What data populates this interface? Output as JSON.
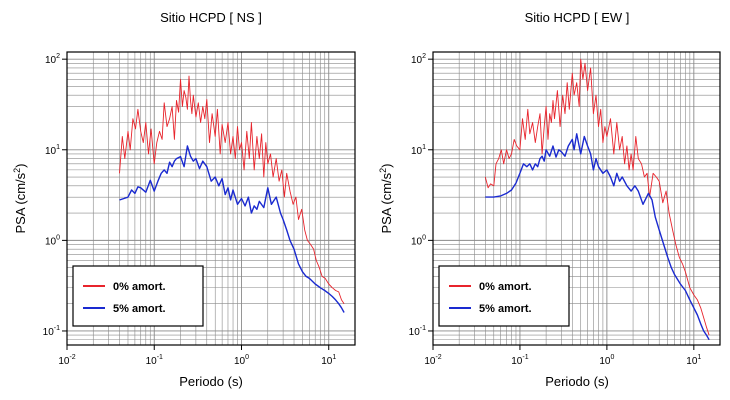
{
  "chart_data": [
    {
      "type": "line",
      "title": "Sitio HCPD [ NS ]",
      "xlabel": "Periodo (s)",
      "ylabel": "PSA (cm/s",
      "ylabel_sup": "2",
      "ylabel_tail": ")",
      "x_scale": "log",
      "y_scale": "log",
      "xlim": [
        0.01,
        20
      ],
      "ylim": [
        0.07,
        120
      ],
      "grid": true,
      "legend_position": "bottom-left",
      "x_ticks": [
        {
          "base": "10",
          "exp": "-2",
          "value": 0.01
        },
        {
          "base": "10",
          "exp": "-1",
          "value": 0.1
        },
        {
          "base": "10",
          "exp": "0",
          "value": 1
        },
        {
          "base": "10",
          "exp": "1",
          "value": 10
        }
      ],
      "y_ticks": [
        {
          "base": "10",
          "exp": "-1",
          "value": 0.1
        },
        {
          "base": "10",
          "exp": "0",
          "value": 1
        },
        {
          "base": "10",
          "exp": "1",
          "value": 10
        },
        {
          "base": "10",
          "exp": "2",
          "value": 100
        }
      ],
      "series": [
        {
          "name": "0% amort.",
          "color": "#e8242c",
          "x": [
            0.04,
            0.043,
            0.046,
            0.05,
            0.053,
            0.057,
            0.061,
            0.065,
            0.07,
            0.075,
            0.08,
            0.086,
            0.092,
            0.1,
            0.107,
            0.115,
            0.123,
            0.13,
            0.14,
            0.15,
            0.16,
            0.17,
            0.18,
            0.19,
            0.2,
            0.21,
            0.22,
            0.23,
            0.24,
            0.25,
            0.26,
            0.27,
            0.28,
            0.3,
            0.32,
            0.34,
            0.36,
            0.38,
            0.4,
            0.43,
            0.46,
            0.5,
            0.53,
            0.57,
            0.6,
            0.65,
            0.7,
            0.75,
            0.8,
            0.85,
            0.9,
            0.95,
            1.0,
            1.07,
            1.15,
            1.23,
            1.3,
            1.4,
            1.5,
            1.6,
            1.7,
            1.8,
            1.9,
            2.0,
            2.15,
            2.3,
            2.5,
            2.7,
            2.9,
            3.1,
            3.3,
            3.6,
            3.9,
            4.2,
            4.5,
            4.9,
            5.3,
            5.7,
            6.2,
            6.7,
            7.2,
            7.8,
            8.4,
            9.1,
            10,
            11,
            12,
            13,
            14,
            15
          ],
          "y": [
            5.5,
            14,
            8,
            16,
            10,
            22,
            17,
            28,
            16,
            12,
            20,
            9,
            17,
            7,
            12,
            16,
            13,
            33,
            18,
            22,
            30,
            13,
            35,
            26,
            60,
            30,
            45,
            38,
            28,
            65,
            35,
            25,
            40,
            23,
            33,
            20,
            30,
            22,
            36,
            12,
            25,
            14,
            28,
            9,
            19,
            12,
            20,
            9,
            14,
            8,
            18,
            10,
            12,
            6,
            16,
            8,
            20,
            6,
            14,
            8,
            15,
            5,
            12,
            7,
            9,
            5,
            8,
            4.5,
            6,
            3,
            5.5,
            3.5,
            2.5,
            3,
            1.7,
            2.2,
            1.3,
            1.0,
            0.9,
            0.8,
            0.6,
            0.5,
            0.4,
            0.38,
            0.33,
            0.3,
            0.28,
            0.27,
            0.22,
            0.2
          ]
        },
        {
          "name": "5% amort.",
          "color": "#1a2ad0",
          "x": [
            0.04,
            0.045,
            0.05,
            0.055,
            0.06,
            0.065,
            0.07,
            0.08,
            0.09,
            0.1,
            0.11,
            0.12,
            0.13,
            0.14,
            0.15,
            0.16,
            0.17,
            0.18,
            0.2,
            0.22,
            0.24,
            0.26,
            0.28,
            0.3,
            0.33,
            0.36,
            0.4,
            0.45,
            0.5,
            0.55,
            0.6,
            0.65,
            0.7,
            0.75,
            0.8,
            0.9,
            1.0,
            1.1,
            1.2,
            1.3,
            1.4,
            1.5,
            1.6,
            1.8,
            2.0,
            2.2,
            2.5,
            2.8,
            3.0,
            3.3,
            3.6,
            4.0,
            4.5,
            5.0,
            5.5,
            6,
            7,
            8,
            9,
            10,
            11,
            12,
            13,
            14,
            15
          ],
          "y": [
            2.8,
            2.9,
            3.0,
            3.6,
            3.3,
            3.9,
            3.8,
            3.4,
            4.6,
            3.5,
            4.5,
            5.5,
            6.0,
            5.5,
            7.3,
            6.5,
            7.5,
            8.0,
            8.4,
            6.5,
            11,
            8.5,
            7.5,
            8,
            6.2,
            7.5,
            6.5,
            4.5,
            5,
            4.0,
            4.8,
            3.2,
            3.8,
            2.8,
            3.6,
            2.5,
            2.9,
            2.4,
            3.0,
            2.0,
            2.4,
            2.2,
            2.7,
            2.3,
            3.8,
            2.5,
            3.0,
            2.0,
            1.7,
            1.3,
            1.0,
            0.8,
            0.55,
            0.45,
            0.4,
            0.38,
            0.33,
            0.3,
            0.28,
            0.26,
            0.24,
            0.22,
            0.2,
            0.18,
            0.16
          ]
        }
      ]
    },
    {
      "type": "line",
      "title": "Sitio HCPD [ EW ]",
      "xlabel": "Periodo (s)",
      "ylabel": "PSA (cm/s",
      "ylabel_sup": "2",
      "ylabel_tail": ")",
      "x_scale": "log",
      "y_scale": "log",
      "xlim": [
        0.01,
        20
      ],
      "ylim": [
        0.07,
        120
      ],
      "grid": true,
      "legend_position": "bottom-left",
      "x_ticks": [
        {
          "base": "10",
          "exp": "-2",
          "value": 0.01
        },
        {
          "base": "10",
          "exp": "-1",
          "value": 0.1
        },
        {
          "base": "10",
          "exp": "0",
          "value": 1
        },
        {
          "base": "10",
          "exp": "1",
          "value": 10
        }
      ],
      "y_ticks": [
        {
          "base": "10",
          "exp": "-1",
          "value": 0.1
        },
        {
          "base": "10",
          "exp": "0",
          "value": 1
        },
        {
          "base": "10",
          "exp": "1",
          "value": 10
        },
        {
          "base": "10",
          "exp": "2",
          "value": 100
        }
      ],
      "series": [
        {
          "name": "0% amort.",
          "color": "#e8242c",
          "x": [
            0.04,
            0.043,
            0.046,
            0.05,
            0.053,
            0.057,
            0.061,
            0.065,
            0.07,
            0.075,
            0.08,
            0.086,
            0.092,
            0.1,
            0.107,
            0.115,
            0.123,
            0.13,
            0.14,
            0.15,
            0.16,
            0.17,
            0.18,
            0.19,
            0.2,
            0.21,
            0.22,
            0.23,
            0.24,
            0.25,
            0.27,
            0.29,
            0.31,
            0.33,
            0.35,
            0.37,
            0.4,
            0.42,
            0.45,
            0.48,
            0.5,
            0.53,
            0.56,
            0.6,
            0.65,
            0.7,
            0.75,
            0.8,
            0.85,
            0.9,
            0.95,
            1.0,
            1.1,
            1.2,
            1.3,
            1.4,
            1.5,
            1.6,
            1.7,
            1.8,
            1.9,
            2.0,
            2.15,
            2.3,
            2.5,
            2.7,
            2.9,
            3.1,
            3.4,
            3.7,
            4.0,
            4.4,
            4.8,
            5.2,
            5.7,
            6.2,
            6.8,
            7.4,
            8,
            9,
            10,
            11,
            12,
            13,
            14,
            15
          ],
          "y": [
            5,
            3.8,
            4.2,
            4,
            7,
            8,
            10,
            7,
            10,
            8,
            9,
            13,
            11,
            10,
            22,
            13,
            28,
            15,
            20,
            12,
            18,
            25,
            9,
            18,
            30,
            13,
            25,
            20,
            35,
            22,
            45,
            18,
            40,
            25,
            55,
            28,
            70,
            40,
            55,
            30,
            100,
            60,
            90,
            45,
            80,
            25,
            40,
            18,
            28,
            12,
            18,
            14,
            22,
            9,
            20,
            10,
            14,
            7,
            11,
            6,
            9,
            6,
            14,
            8,
            7,
            5,
            5.5,
            3,
            5.5,
            5,
            4.5,
            2.6,
            3.5,
            2.0,
            1.3,
            0.9,
            0.65,
            0.55,
            0.45,
            0.3,
            0.25,
            0.22,
            0.18,
            0.14,
            0.11,
            0.09
          ]
        },
        {
          "name": "5% amort.",
          "color": "#1a2ad0",
          "x": [
            0.04,
            0.05,
            0.06,
            0.07,
            0.08,
            0.09,
            0.1,
            0.11,
            0.12,
            0.13,
            0.14,
            0.15,
            0.16,
            0.17,
            0.18,
            0.19,
            0.2,
            0.22,
            0.24,
            0.26,
            0.28,
            0.3,
            0.33,
            0.36,
            0.4,
            0.42,
            0.45,
            0.5,
            0.55,
            0.6,
            0.65,
            0.7,
            0.75,
            0.8,
            0.9,
            1.0,
            1.1,
            1.2,
            1.3,
            1.4,
            1.5,
            1.7,
            1.9,
            2.1,
            2.3,
            2.6,
            3.0,
            3.3,
            3.6,
            4.0,
            4.5,
            5.0,
            5.5,
            6,
            7,
            8,
            9,
            10,
            11,
            12,
            13,
            14,
            15
          ],
          "y": [
            3.0,
            3.0,
            3.1,
            3.3,
            3.6,
            4.3,
            5.5,
            7.0,
            6.5,
            7.0,
            6.0,
            7.0,
            6.5,
            8.0,
            8.5,
            7.5,
            10,
            8.5,
            11,
            8.3,
            10,
            9.5,
            8.5,
            11,
            13,
            10,
            15,
            9,
            14,
            11,
            9,
            6,
            8,
            6.5,
            5.5,
            6,
            5,
            4.0,
            5.5,
            4.5,
            5.0,
            4.0,
            3.5,
            4.0,
            3.5,
            2.5,
            3.3,
            2.8,
            1.8,
            1.3,
            0.9,
            0.65,
            0.5,
            0.42,
            0.33,
            0.28,
            0.22,
            0.18,
            0.15,
            0.12,
            0.1,
            0.09,
            0.08
          ]
        }
      ]
    }
  ]
}
